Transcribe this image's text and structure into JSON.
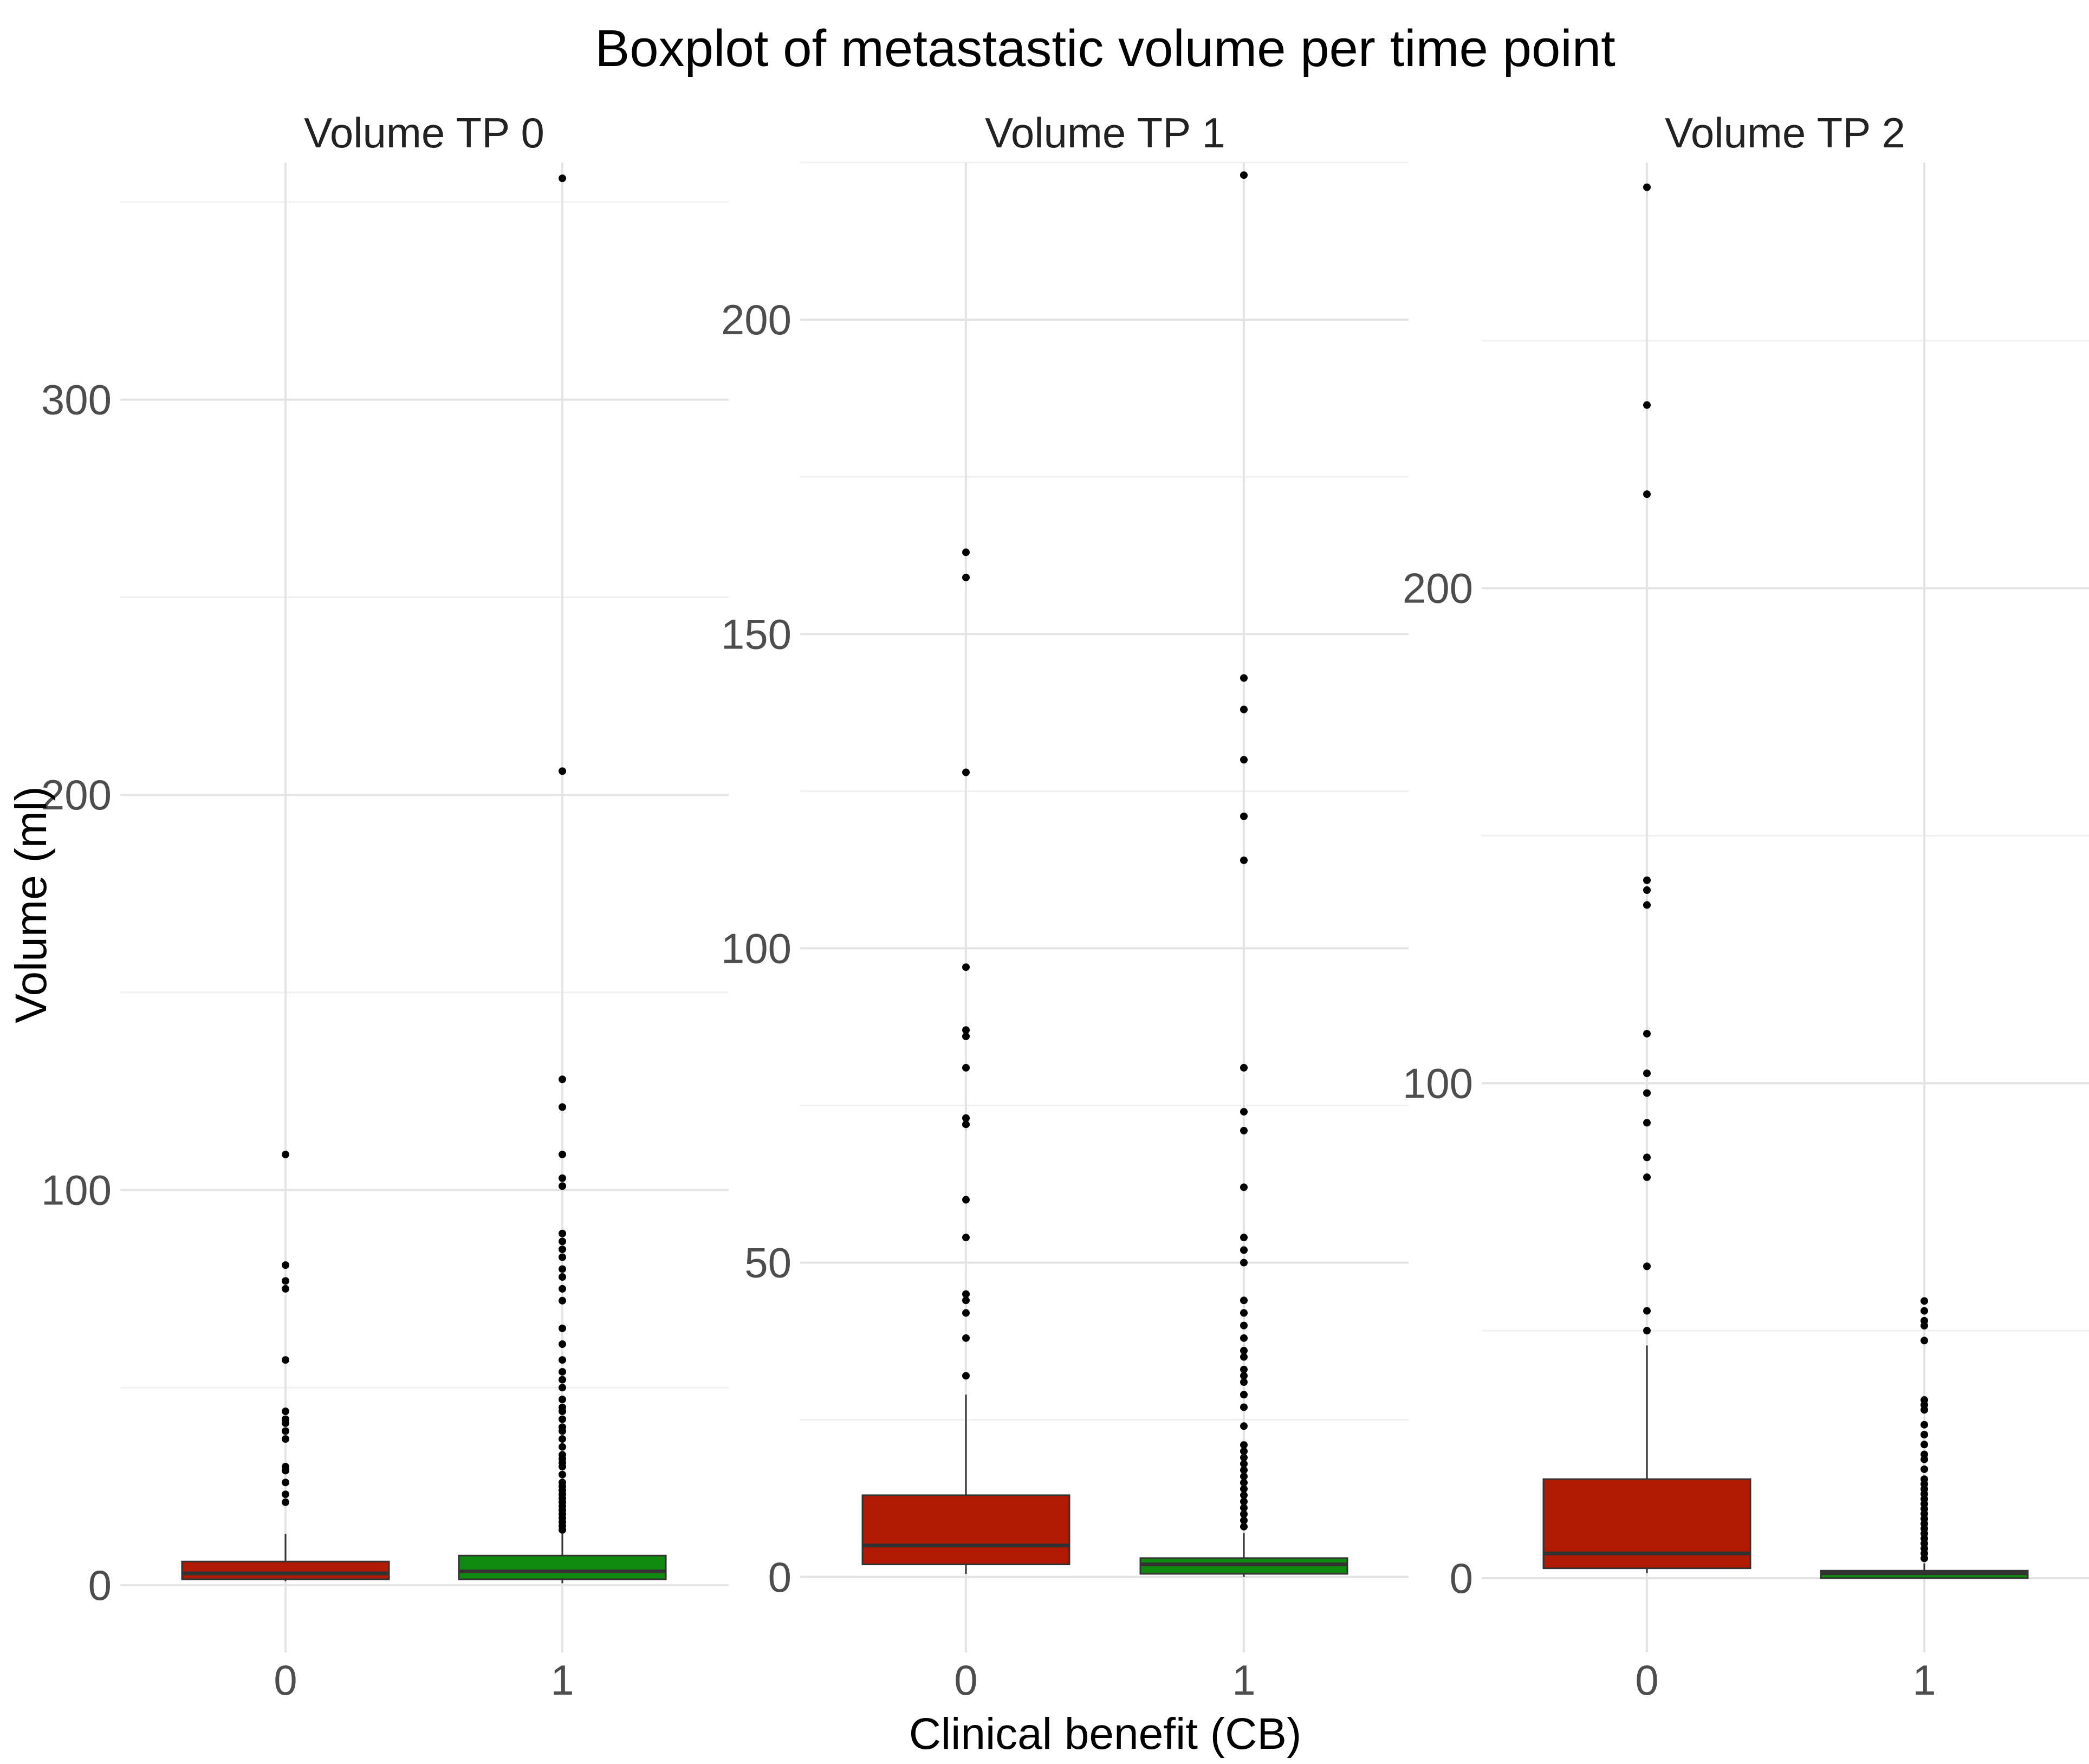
{
  "chart_data": {
    "type": "boxplot",
    "title": "Boxplot of metastastic volume per time point",
    "xlabel": "Clinical benefit (CB)",
    "ylabel": "Volume (ml)",
    "categories": [
      "0",
      "1"
    ],
    "colors": {
      "0": "#b01a00",
      "1": "#0f8a0f"
    },
    "panels": [
      {
        "title": "Volume TP 0",
        "ylim": [
          -17,
          360
        ],
        "yticks": [
          0,
          100,
          200,
          300
        ],
        "boxes": [
          {
            "category": "0",
            "lower": 1,
            "q1": 1.5,
            "median": 3,
            "q3": 6,
            "upper": 13,
            "outliers": [
              21,
              23,
              26,
              29,
              30,
              37,
              39,
              41,
              42,
              44,
              57,
              75,
              77,
              81,
              109
            ]
          },
          {
            "category": "1",
            "lower": 0.5,
            "q1": 1.5,
            "median": 3.5,
            "q3": 7.5,
            "upper": 13,
            "outliers": [
              14,
              15,
              16,
              17,
              18,
              19,
              20,
              21,
              22,
              23,
              24,
              25,
              26,
              28,
              30,
              31,
              32,
              33,
              35,
              37,
              39,
              40,
              42,
              44,
              45,
              47,
              50,
              52,
              54,
              57,
              61,
              65,
              72,
              75,
              78,
              80,
              83,
              85,
              87,
              89,
              101,
              103,
              109,
              121,
              128,
              206,
              356
            ]
          }
        ]
      },
      {
        "title": "Volume TP 1",
        "ylim": [
          -12,
          225
        ],
        "yticks": [
          0,
          50,
          100,
          150,
          200
        ],
        "boxes": [
          {
            "category": "0",
            "lower": 0.5,
            "q1": 2,
            "median": 5,
            "q3": 13,
            "upper": 29,
            "outliers": [
              32,
              38,
              42,
              44,
              45,
              54,
              60,
              72,
              73,
              81,
              86,
              87,
              97,
              128,
              159,
              163
            ]
          },
          {
            "category": "1",
            "lower": 0,
            "q1": 0.5,
            "median": 2,
            "q3": 3,
            "upper": 7,
            "outliers": [
              8,
              9,
              10,
              11,
              12,
              13,
              14,
              15,
              16,
              17,
              18,
              19,
              20,
              21,
              24,
              27,
              29,
              31,
              32,
              33,
              35,
              36,
              38,
              40,
              42,
              44,
              50,
              52,
              54,
              62,
              71,
              74,
              81,
              114,
              121,
              130,
              138,
              143,
              223
            ]
          }
        ]
      },
      {
        "title": "Volume TP 2",
        "ylim": [
          -15,
          286
        ],
        "yticks": [
          0,
          100,
          200
        ],
        "boxes": [
          {
            "category": "0",
            "lower": 1,
            "q1": 2,
            "median": 5,
            "q3": 20,
            "upper": 47,
            "outliers": [
              50,
              54,
              63,
              81,
              85,
              92,
              98,
              102,
              110,
              136,
              139,
              141,
              219,
              237,
              281
            ]
          },
          {
            "category": "1",
            "lower": 0,
            "q1": 0,
            "median": 1,
            "q3": 1.5,
            "upper": 3,
            "outliers": [
              4,
              5,
              6,
              7,
              8,
              9,
              10,
              11,
              12,
              13,
              14,
              15,
              16,
              17,
              18,
              19,
              20,
              22,
              24,
              25,
              27,
              29,
              31,
              34,
              35,
              36,
              48,
              51,
              52,
              54,
              56
            ]
          }
        ]
      }
    ]
  }
}
